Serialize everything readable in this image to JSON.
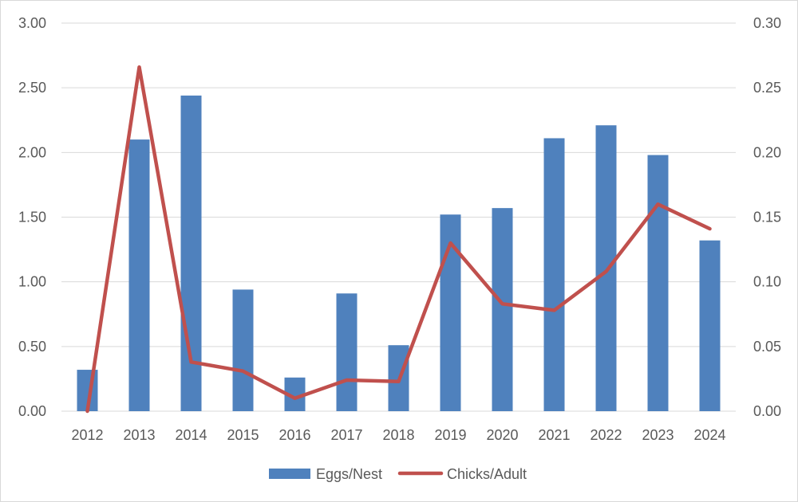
{
  "chart_data": {
    "type": "bar",
    "categories": [
      "2012",
      "2013",
      "2014",
      "2015",
      "2016",
      "2017",
      "2018",
      "2019",
      "2020",
      "2021",
      "2022",
      "2023",
      "2024"
    ],
    "series": [
      {
        "name": "Eggs/Nest",
        "type": "bar",
        "axis": "left",
        "color": "#4f81bd",
        "values": [
          0.32,
          2.1,
          2.44,
          0.94,
          0.26,
          0.91,
          0.51,
          1.52,
          1.57,
          2.11,
          2.21,
          1.98,
          1.32
        ]
      },
      {
        "name": "Chicks/Adult",
        "type": "line",
        "axis": "right",
        "color": "#c0504d",
        "values": [
          0.0,
          0.266,
          0.038,
          0.031,
          0.01,
          0.024,
          0.023,
          0.13,
          0.083,
          0.078,
          0.108,
          0.16,
          0.141
        ]
      }
    ],
    "left_axis": {
      "ylim": [
        0,
        3
      ],
      "ticks": [
        "0.00",
        "0.50",
        "1.00",
        "1.50",
        "2.00",
        "2.50",
        "3.00"
      ]
    },
    "right_axis": {
      "ylim": [
        0,
        0.3
      ],
      "ticks": [
        "0.00",
        "0.05",
        "0.10",
        "0.15",
        "0.20",
        "0.25",
        "0.30"
      ]
    },
    "grid": true,
    "legend": "bottom-center",
    "title": "",
    "xlabel": "",
    "ylabel": ""
  }
}
